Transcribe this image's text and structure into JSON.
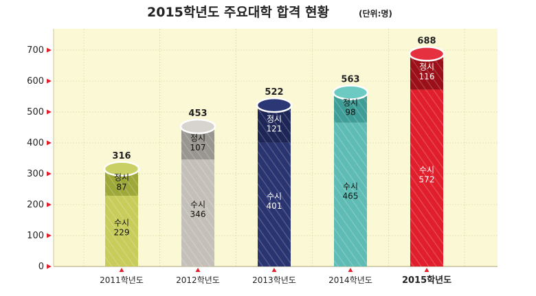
{
  "chart_data": {
    "type": "bar",
    "stacked": true,
    "title": "2015학년도 주요대학 합격 현황",
    "unit": "(단위:명)",
    "categories": [
      "2011학년도",
      "2012학년도",
      "2013학년도",
      "2014학년도",
      "2015학년도"
    ],
    "highlight_category": "2015학년도",
    "totals": [
      316,
      453,
      522,
      563,
      688
    ],
    "series": [
      {
        "name": "수시",
        "values": [
          229,
          346,
          401,
          465,
          572
        ]
      },
      {
        "name": "정시",
        "values": [
          87,
          107,
          121,
          98,
          116
        ]
      }
    ],
    "yticks": [
      0,
      100,
      200,
      300,
      400,
      500,
      600,
      700
    ],
    "ylim": [
      0,
      700
    ],
    "grid": true,
    "colors": [
      {
        "susi": "#c8cc5a",
        "jeongsi": "#9da838",
        "top": "#c9d166"
      },
      {
        "susi": "#c4c0b9",
        "jeongsi": "#999590",
        "top": "#d7d4cf"
      },
      {
        "susi": "#2a3470",
        "jeongsi": "#1e2657",
        "top": "#2c3876"
      },
      {
        "susi": "#5fbcb5",
        "jeongsi": "#3f9d97",
        "top": "#6ccac3"
      },
      {
        "susi": "#e01e2c",
        "jeongsi": "#9a0f18",
        "top": "#e53040"
      }
    ],
    "label_colors": [
      "#111111",
      "#111111",
      "#ffffff",
      "#111111",
      "#ffffff"
    ],
    "plot_background": "#fbf8d6",
    "gridline_color": "#e4dfb2",
    "axis_marker_color": "#e0202b"
  }
}
